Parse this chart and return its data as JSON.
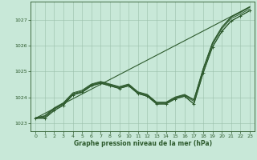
{
  "title": "Graphe pression niveau de la mer (hPa)",
  "bg_color": "#c8e8d8",
  "grid_color": "#9abfaa",
  "line_color": "#2d5a2d",
  "xlim": [
    -0.5,
    23.5
  ],
  "ylim": [
    1022.7,
    1027.7
  ],
  "yticks": [
    1023,
    1024,
    1025,
    1026,
    1027
  ],
  "xticks": [
    0,
    1,
    2,
    3,
    4,
    5,
    6,
    7,
    8,
    9,
    10,
    11,
    12,
    13,
    14,
    15,
    16,
    17,
    18,
    19,
    20,
    21,
    22,
    23
  ],
  "series_main": [
    1023.2,
    1023.2,
    1023.5,
    1023.7,
    1024.1,
    1024.2,
    1024.45,
    1024.55,
    1024.45,
    1024.35,
    1024.45,
    1024.15,
    1024.05,
    1023.75,
    1023.75,
    1023.95,
    1024.05,
    1023.75,
    1024.95,
    1025.95,
    1026.55,
    1026.95,
    1027.15,
    1027.35
  ],
  "series_lines": [
    [
      1023.2,
      1023.2,
      1023.5,
      1023.7,
      1024.1,
      1024.2,
      1024.45,
      1024.55,
      1024.45,
      1024.35,
      1024.45,
      1024.15,
      1024.05,
      1023.75,
      1023.75,
      1023.95,
      1024.05,
      1023.75,
      1024.95,
      1025.95,
      1026.55,
      1026.95,
      1027.15,
      1027.35
    ],
    [
      1023.2,
      1023.25,
      1023.55,
      1023.75,
      1024.12,
      1024.22,
      1024.48,
      1024.58,
      1024.48,
      1024.38,
      1024.48,
      1024.18,
      1024.08,
      1023.78,
      1023.78,
      1023.98,
      1024.08,
      1023.85,
      1025.05,
      1026.05,
      1026.65,
      1027.05,
      1027.22,
      1027.42
    ],
    [
      1023.2,
      1023.28,
      1023.58,
      1023.78,
      1024.15,
      1024.25,
      1024.5,
      1024.6,
      1024.5,
      1024.4,
      1024.5,
      1024.2,
      1024.1,
      1023.8,
      1023.8,
      1024.0,
      1024.1,
      1023.9,
      1025.1,
      1026.1,
      1026.7,
      1027.1,
      1027.28,
      1027.48
    ],
    [
      1023.22,
      1023.3,
      1023.6,
      1023.8,
      1024.18,
      1024.28,
      1024.52,
      1024.62,
      1024.52,
      1024.42,
      1024.52,
      1024.22,
      1024.12,
      1023.82,
      1023.82,
      1024.02,
      1024.12,
      1023.92,
      1025.12,
      1026.12,
      1026.72,
      1027.12,
      1027.3,
      1027.5
    ]
  ]
}
